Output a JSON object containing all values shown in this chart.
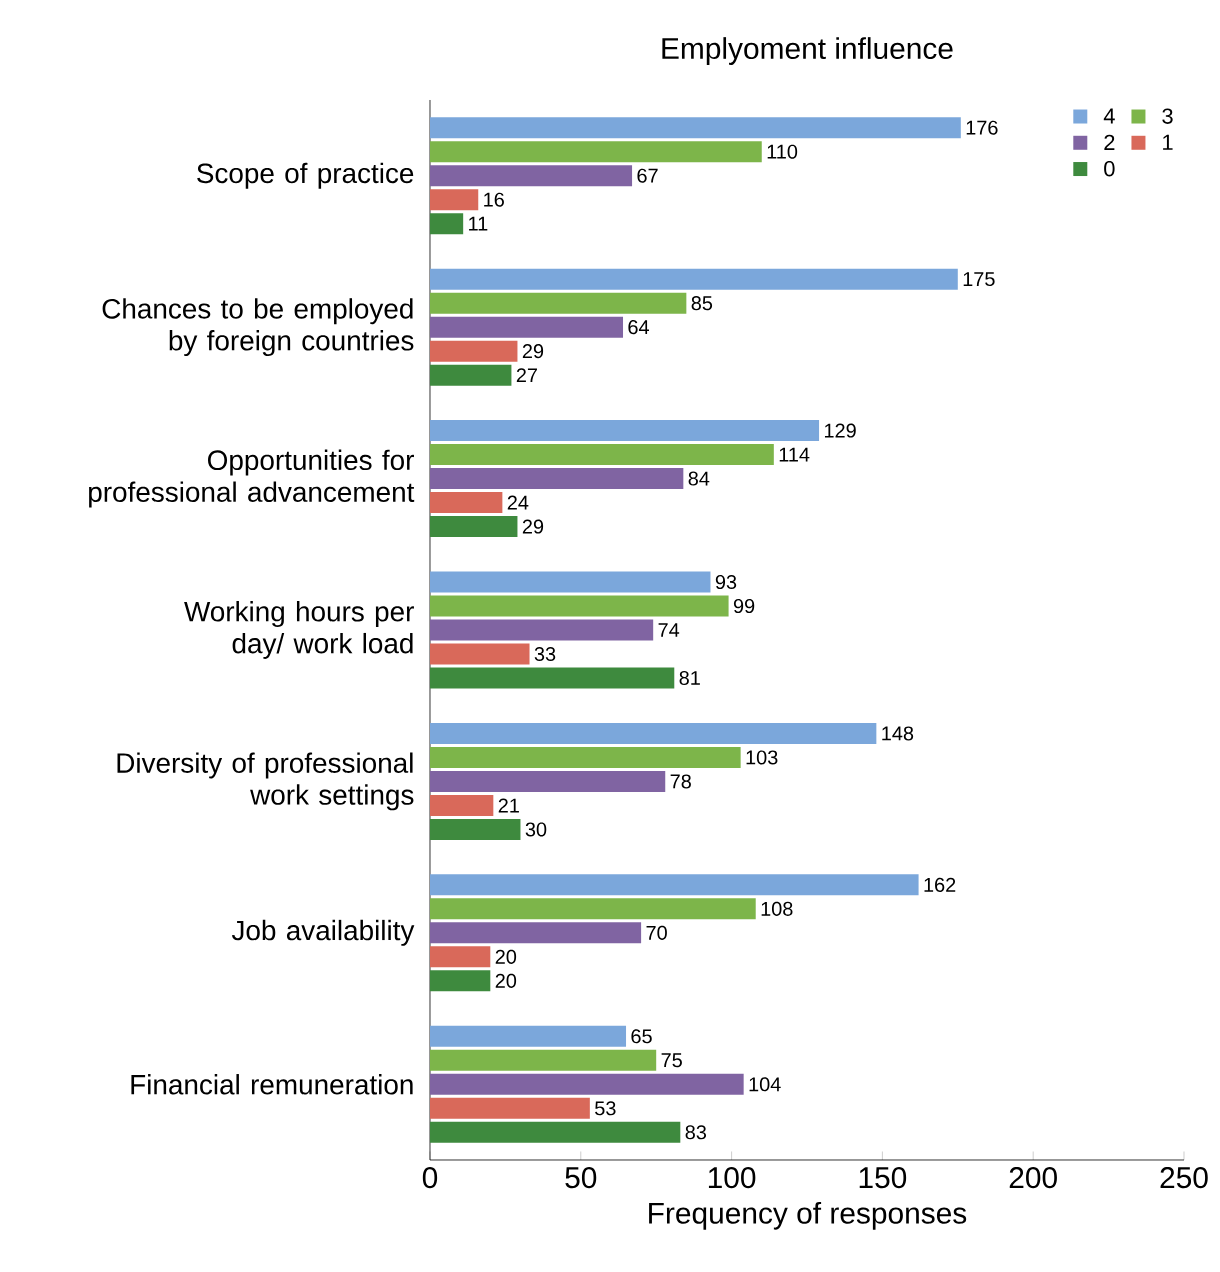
{
  "chart_data": {
    "type": "bar",
    "orientation": "horizontal",
    "title": "Emplyoment influence",
    "xlabel": "Frequency of responses",
    "categories": [
      "Scope of practice",
      "Chances to be employed by foreign countries",
      "Opportunities for professional advancement",
      "Working hours per day/ work load",
      "Diversity of professional work settings",
      "Job availability",
      "Financial remuneration"
    ],
    "series": [
      {
        "name": "4",
        "color": "#7ba7db",
        "values": [
          176,
          175,
          129,
          93,
          148,
          162,
          65
        ]
      },
      {
        "name": "3",
        "color": "#7db54a",
        "values": [
          110,
          85,
          114,
          99,
          103,
          108,
          75
        ]
      },
      {
        "name": "2",
        "color": "#8064a2",
        "values": [
          67,
          64,
          84,
          74,
          78,
          70,
          104
        ]
      },
      {
        "name": "1",
        "color": "#d9695a",
        "values": [
          16,
          29,
          24,
          33,
          21,
          20,
          53
        ]
      },
      {
        "name": "0",
        "color": "#3e8a3e",
        "values": [
          11,
          27,
          29,
          81,
          30,
          20,
          83
        ]
      }
    ],
    "xlim": [
      0,
      250
    ],
    "xticks": [
      0,
      50,
      100,
      150,
      200,
      250
    ],
    "data_labels": true,
    "legend": "top right"
  }
}
